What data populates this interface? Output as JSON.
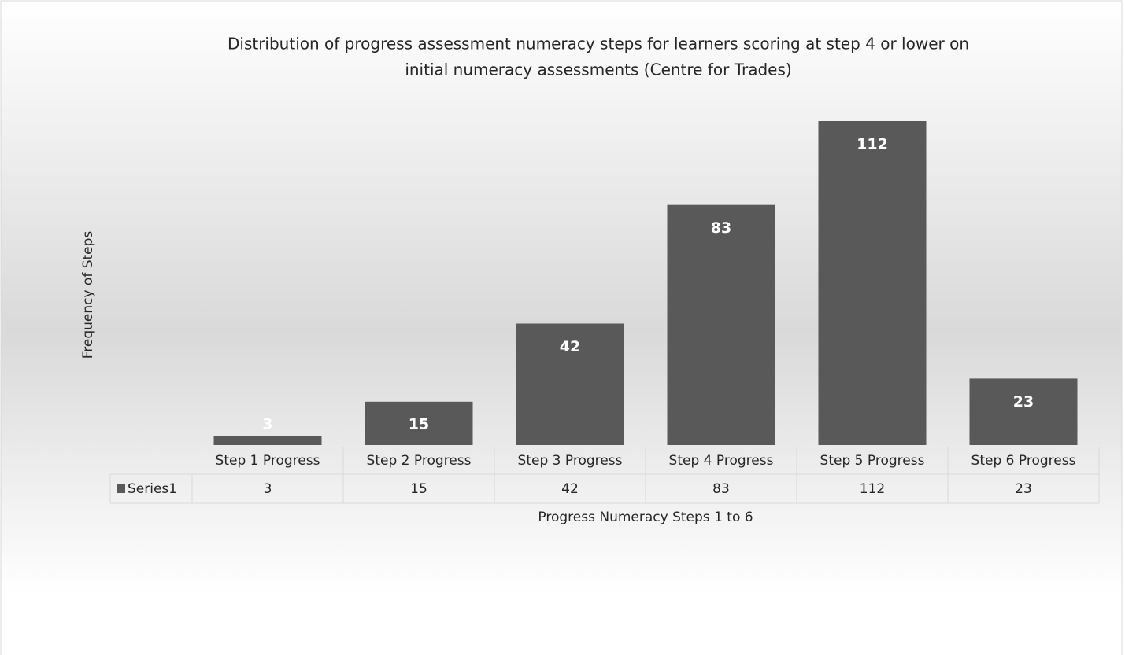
{
  "chart_data": {
    "type": "bar",
    "title": [
      "Distribution of progress assessment numeracy steps for learners scoring at step 4 or lower on",
      "initial numeracy assessments (Centre for Trades)"
    ],
    "x_label": "Progress Numeracy Steps 1 to 6",
    "y_label": "Frequency of Steps",
    "categories": [
      "Step 1 Progress",
      "Step 2 Progress",
      "Step 3 Progress",
      "Step 4 Progress",
      "Step 5 Progress",
      "Step 6 Progress"
    ],
    "series": [
      {
        "name": "Series1",
        "color": "#595959",
        "values": [
          3,
          15,
          42,
          83,
          112,
          23
        ]
      }
    ],
    "data_table": true
  }
}
